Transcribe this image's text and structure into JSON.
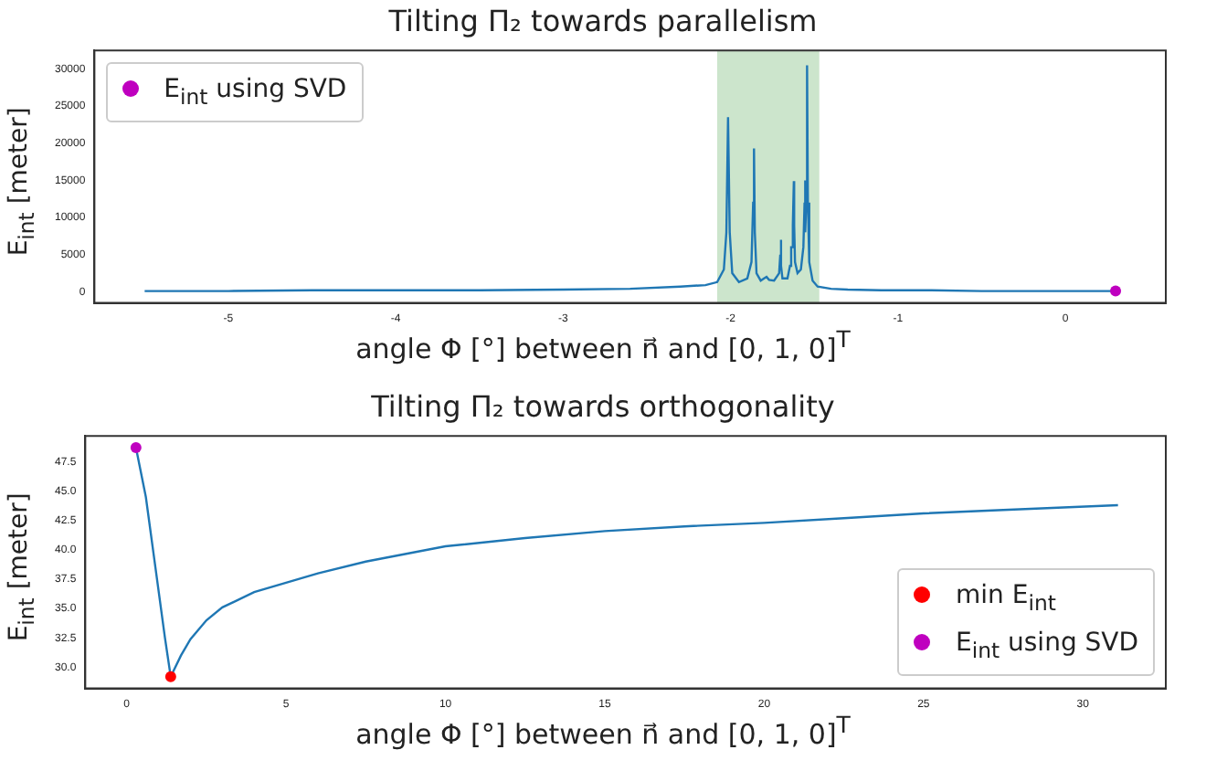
{
  "chart_data": [
    {
      "type": "line",
      "title": "Tilting Π₂ towards parallelism",
      "xlabel": "angle Φ [°] between n⃗ and [0, 1, 0]$^{T}$",
      "ylabel": "E$_{int}$  [meter]",
      "xlim": [
        -5.8,
        0.6
      ],
      "xticks": [
        -5,
        -4,
        -3,
        -2,
        -1,
        0
      ],
      "ylim": [
        -1500,
        32500
      ],
      "yticks": [
        0,
        5000,
        10000,
        15000,
        20000,
        25000,
        30000
      ],
      "grid": false,
      "legend": "top left",
      "bands": [
        {
          "axis": "x",
          "from": -2.08,
          "to": -1.47,
          "color": "#cce5cc"
        }
      ],
      "series": [
        {
          "color": "#1f77b4",
          "marker": "none",
          "x": [
            -5.5,
            -5,
            -4.5,
            -4,
            -3.5,
            -3,
            -2.6,
            -2.3,
            -2.15,
            -2.08,
            -2.04,
            -2.025,
            -2.015,
            -2.005,
            -1.99,
            -1.95,
            -1.9,
            -1.875,
            -1.865,
            -1.86,
            -1.855,
            -1.845,
            -1.82,
            -1.8,
            -1.785,
            -1.77,
            -1.74,
            -1.71,
            -1.703,
            -1.7,
            -1.697,
            -1.69,
            -1.66,
            -1.645,
            -1.638,
            -1.634,
            -1.628,
            -1.622,
            -1.62,
            -1.615,
            -1.6,
            -1.58,
            -1.565,
            -1.558,
            -1.556,
            -1.552,
            -1.548,
            -1.543,
            -1.538,
            -1.53,
            -1.51,
            -1.48,
            -1.4,
            -1.3,
            -1.1,
            -0.8,
            -0.5,
            -0.2,
            0,
            0.3
          ],
          "values": [
            100,
            100,
            200,
            200,
            200,
            300,
            400,
            700,
            900,
            1300,
            3000,
            8000,
            23500,
            8000,
            2500,
            1300,
            1800,
            4000,
            12000,
            19300,
            8000,
            2500,
            1500,
            1800,
            2000,
            1600,
            1500,
            2500,
            5000,
            7000,
            3500,
            1800,
            1800,
            3500,
            6000,
            6000,
            9000,
            14900,
            9000,
            4000,
            2500,
            3000,
            6000,
            12000,
            15000,
            8000,
            12000,
            30500,
            12000,
            4000,
            1500,
            700,
            400,
            300,
            200,
            200,
            100,
            100,
            100,
            100
          ]
        },
        {
          "type": "scatter",
          "name": "E$_{int}$   using SVD",
          "color": "#bf00bf",
          "marker": "circle",
          "x": [
            0.3
          ],
          "values": [
            100
          ]
        }
      ]
    },
    {
      "type": "line",
      "title": "Tilting Π₂ towards orthogonality",
      "xlabel": "angle Φ [°] between n⃗ and [0, 1, 0]$^{T}$",
      "ylabel": "E$_{int}$  [meter]",
      "xlim": [
        -1.3,
        32.6
      ],
      "xticks": [
        0,
        5,
        10,
        15,
        20,
        25,
        30
      ],
      "ylim": [
        28.2,
        49.7
      ],
      "yticks": [
        {
          "value": 30,
          "label": "30.0"
        },
        32.5,
        {
          "value": 35,
          "label": "35.0"
        },
        37.5,
        {
          "value": 40,
          "label": "40.0"
        },
        42.5,
        {
          "value": 45,
          "label": "45.0"
        },
        47.5
      ],
      "grid": false,
      "legend": "bottom right",
      "series": [
        {
          "color": "#1f77b4",
          "marker": "none",
          "x": [
            0.29,
            0.6,
            0.9,
            1.2,
            1.38,
            1.7,
            2,
            2.5,
            3,
            4,
            5,
            6,
            7.5,
            10,
            12.5,
            15,
            17.5,
            20,
            22.5,
            25,
            27.5,
            31.1
          ],
          "values": [
            48.7,
            44.5,
            38.5,
            32.5,
            29.2,
            31.0,
            32.4,
            34.0,
            35.1,
            36.4,
            37.2,
            38.0,
            39.0,
            40.3,
            41.0,
            41.6,
            42.0,
            42.3,
            42.7,
            43.1,
            43.4,
            43.8
          ]
        },
        {
          "type": "scatter",
          "name": "min E$_{int}$",
          "color": "#ff0000",
          "marker": "circle",
          "x": [
            1.38
          ],
          "values": [
            29.2
          ]
        },
        {
          "type": "scatter",
          "name": "E$_{int}$   using SVD",
          "color": "#bf00bf",
          "marker": "circle",
          "x": [
            0.29
          ],
          "values": [
            48.7
          ]
        }
      ]
    }
  ]
}
